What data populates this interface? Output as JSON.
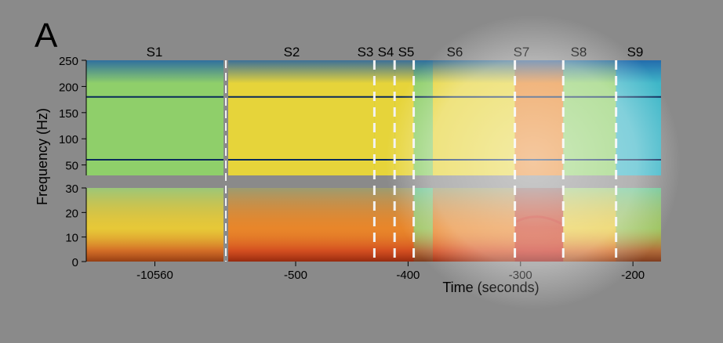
{
  "panel_label": "A",
  "colors": {
    "background": "#8a8a8a",
    "highlight": "#ffffff",
    "blue": "#1f5fa8",
    "cyan": "#3fb7c8",
    "green": "#8fcf6a",
    "yellow": "#e6d43a",
    "orange": "#e8862a",
    "red": "#c62a1a",
    "dark_red": "#7a0c06",
    "line_noise": "#0a2a5a",
    "stage_line": "#f2f2f2"
  },
  "chart_data": {
    "type": "heatmap",
    "subtype": "spectrogram",
    "xlabel": "Time (seconds)",
    "ylabel": "Frequency (Hz)",
    "x_ticks": [
      "-10560",
      "-500",
      "-400",
      "-300",
      "-200"
    ],
    "y_ticks_upper": [
      "250",
      "200",
      "150",
      "100",
      "50"
    ],
    "y_ticks_lower": [
      "30",
      "20",
      "10",
      "0"
    ],
    "upper_ylim": [
      30,
      250
    ],
    "lower_ylim": [
      0,
      30
    ],
    "noise_lines_hz": [
      180,
      60
    ],
    "stages": [
      {
        "label": "S1",
        "start": null,
        "end": null,
        "intensity": 0.35
      },
      {
        "label": "S2",
        "start": -560,
        "end": -430,
        "intensity": 0.55
      },
      {
        "label": "S3",
        "start": -430,
        "end": -412,
        "intensity": 0.55
      },
      {
        "label": "S4",
        "start": -412,
        "end": -395,
        "intensity": 0.55
      },
      {
        "label": "S5",
        "start": -395,
        "end": -378,
        "intensity": 0.3
      },
      {
        "label": "S6",
        "start": -378,
        "end": -305,
        "intensity": 0.6
      },
      {
        "label": "S7",
        "start": -305,
        "end": -262,
        "intensity": 0.85
      },
      {
        "label": "S8",
        "start": -262,
        "end": -215,
        "intensity": 0.4
      },
      {
        "label": "S9",
        "start": -215,
        "end": -175,
        "intensity": 0.25
      }
    ],
    "stage_boundaries": [
      -430,
      -412,
      -395,
      -305,
      -262,
      -215
    ],
    "annotation": "circular highlight over S5–S9 (transition to seizure)"
  }
}
